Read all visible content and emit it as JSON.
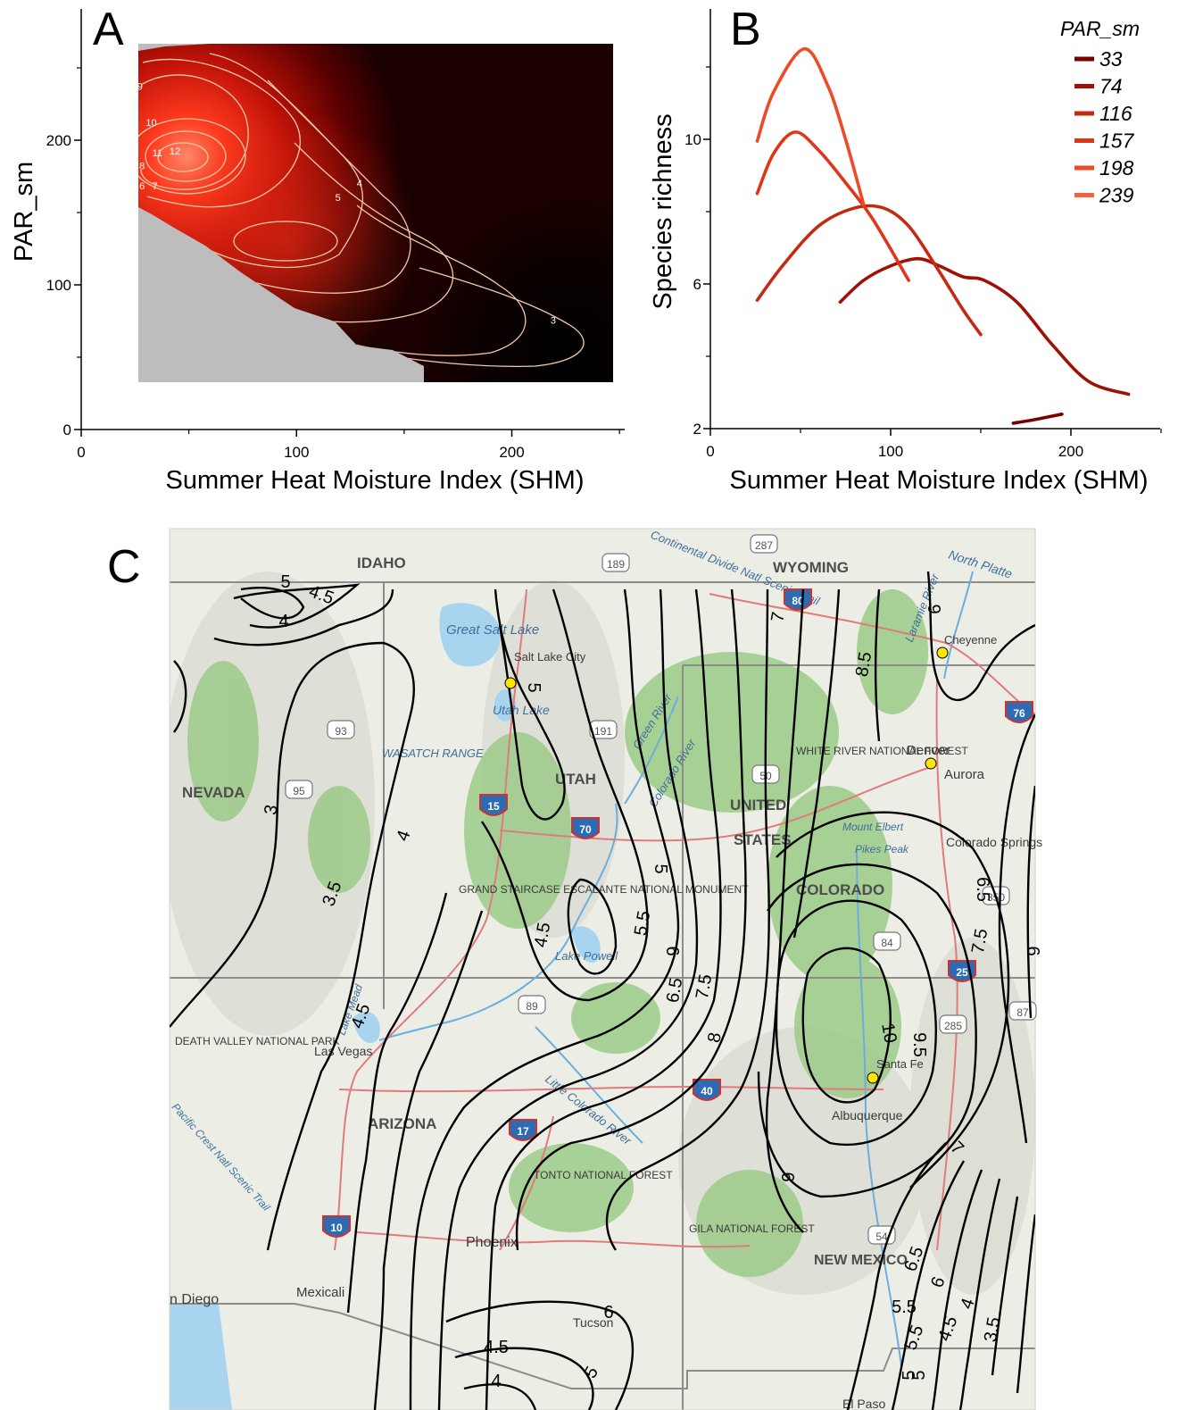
{
  "panels": {
    "a": "A",
    "b": "B",
    "c": "C"
  },
  "colors": {
    "heat_hot": "#ff4a2a",
    "heat_dark": "#000000",
    "background_gray": "#bdbdbd",
    "contour_light": "#f6c9a8",
    "map_land": "#eceee6",
    "map_water": "#a9d4ef",
    "map_forest": "#9ccb88",
    "map_road": "#e07b7b",
    "map_contour": "#000000"
  },
  "chart_data": [
    {
      "type": "heatmap",
      "panel": "A",
      "title": "",
      "xlabel": "Summer Heat Moisture Index (SHM)",
      "ylabel": "PAR_sm",
      "xlim": [
        0,
        250
      ],
      "ylim": [
        0,
        280
      ],
      "x_ticks": [
        0,
        100,
        200
      ],
      "y_ticks": [
        0,
        100,
        200
      ],
      "grid": false,
      "hotspots": [
        {
          "shm": 50,
          "par": 190,
          "richness": 12.5
        },
        {
          "shm": 95,
          "par": 128,
          "richness": 8.5
        },
        {
          "shm": 225,
          "par": 60,
          "richness": 2.2
        }
      ],
      "contour_labels": [
        {
          "text": "9",
          "shm": 26,
          "par": 235
        },
        {
          "text": "10",
          "shm": 30,
          "par": 210
        },
        {
          "text": "11",
          "shm": 33,
          "par": 189
        },
        {
          "text": "12",
          "shm": 41,
          "par": 190
        },
        {
          "text": "8",
          "shm": 27,
          "par": 180
        },
        {
          "text": "6",
          "shm": 27,
          "par": 166
        },
        {
          "text": "7",
          "shm": 33,
          "par": 166
        },
        {
          "text": "5",
          "shm": 118,
          "par": 158
        },
        {
          "text": "4",
          "shm": 128,
          "par": 168
        },
        {
          "text": "3",
          "shm": 218,
          "par": 73
        }
      ]
    },
    {
      "type": "line",
      "panel": "B",
      "title": "",
      "xlabel": "Summer Heat Moisture Index (SHM)",
      "ylabel": "Species richness",
      "xlim": [
        0,
        255
      ],
      "ylim": [
        2,
        13.5
      ],
      "x_ticks": [
        0,
        100,
        200
      ],
      "y_ticks": [
        2,
        6,
        10
      ],
      "legend_title": "PAR_sm",
      "legend_position": "top-right",
      "series": [
        {
          "name": "33",
          "color": "#7a0000",
          "x": [
            168,
            180,
            195
          ],
          "y": [
            2.15,
            2.25,
            2.4
          ]
        },
        {
          "name": "74",
          "color": "#9e1206",
          "x": [
            72,
            85,
            100,
            115,
            127,
            140,
            152,
            170,
            190,
            210,
            232
          ],
          "y": [
            5.5,
            6.1,
            6.5,
            6.7,
            6.5,
            6.2,
            6.1,
            5.5,
            4.3,
            3.3,
            2.95
          ]
        },
        {
          "name": "116",
          "color": "#c42a12",
          "x": [
            26,
            40,
            60,
            80,
            96,
            110,
            125,
            140,
            150
          ],
          "y": [
            5.55,
            6.5,
            7.6,
            8.1,
            8.1,
            7.6,
            6.5,
            5.3,
            4.6
          ]
        },
        {
          "name": "157",
          "color": "#e2341b",
          "x": [
            26,
            35,
            47,
            60,
            75,
            90,
            110
          ],
          "y": [
            8.5,
            9.6,
            10.2,
            9.7,
            8.8,
            7.8,
            6.1
          ]
        },
        {
          "name": "198",
          "color": "#ee4a26",
          "x": [
            26,
            35,
            52,
            65,
            75,
            85
          ],
          "y": [
            9.95,
            11.3,
            12.5,
            11.5,
            10.0,
            8.2
          ]
        },
        {
          "name": "239",
          "color": "#f0643f",
          "x": [],
          "y": []
        }
      ]
    },
    {
      "type": "contour map",
      "panel": "C",
      "title": "",
      "contour_labels": [
        "5",
        "4.5",
        "4",
        "5",
        "3",
        "3.5",
        "4",
        "4.5",
        "4.5",
        "5",
        "5.5",
        "6",
        "6.5",
        "7",
        "7.5",
        "8",
        "8.5",
        "9",
        "9.5",
        "10",
        "6",
        "7",
        "6.5",
        "7.5",
        "6.5",
        "6",
        "5.5",
        "5",
        "4.5",
        "4",
        "3.5",
        "6",
        "5.5",
        "5",
        "4.5",
        "4",
        "5",
        "6"
      ],
      "place_labels": [
        "IDAHO",
        "WYOMING",
        "NEVADA",
        "UTAH",
        "UNITED",
        "STATES",
        "COLORADO",
        "ARIZONA",
        "NEW MEXICO",
        "Salt Lake City",
        "Great Salt Lake",
        "Utah Lake",
        "Cheyenne",
        "Denver",
        "Aurora",
        "Colorado Springs",
        "Santa Fe",
        "Albuquerque",
        "Las Vegas",
        "Phoenix",
        "Tucson",
        "El Paso",
        "Mexicali",
        "n Diego",
        "WASATCH RANGE",
        "GRAND STAIRCASE ESCALANTE NATIONAL MONUMENT",
        "Lake Powell",
        "WHITE RIVER NATIONAL FOREST",
        "Mount Elbert",
        "Pikes Peak",
        "TONTO NATIONAL FOREST",
        "GILA NATIONAL FOREST",
        "DEATH VALLEY NATIONAL PARK",
        "Colorado River",
        "Green River",
        "Little Colorado River",
        "Continental Divide Natl Scenic Trail",
        "North Platte",
        "Laramie River",
        "Lake Mead",
        "Pacific Crest Natl Scenic Trail"
      ],
      "highways": [
        "80",
        "287",
        "189",
        "191",
        "93",
        "95",
        "15",
        "70",
        "89",
        "40",
        "17",
        "10",
        "25",
        "76",
        "285",
        "84",
        "54",
        "50",
        "350",
        "87"
      ]
    }
  ]
}
